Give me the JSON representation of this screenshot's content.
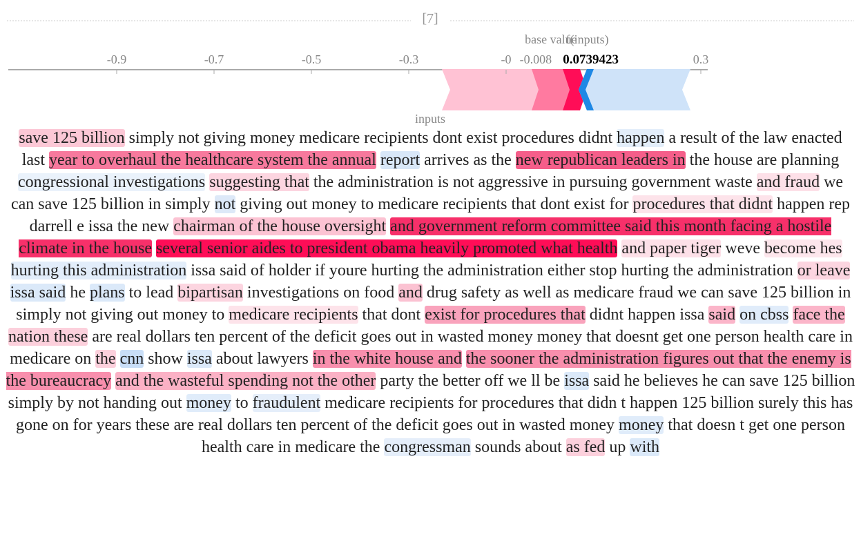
{
  "header": {
    "title": "[7]"
  },
  "force_plot": {
    "ticks": [
      -0.9,
      -0.7,
      -0.5,
      -0.3,
      {
        "value": -0.1,
        "label": "-0"
      },
      0.3
    ],
    "base_value": {
      "value": -0.008,
      "label": "-0.008"
    },
    "base_value_label": "base value",
    "output_label": "f(inputs)",
    "output_value": 0.0739423,
    "inputs_label": "inputs"
  },
  "text": {
    "segments": [
      {
        "text": "save 125 billion",
        "color": "#fcc8d6"
      },
      {
        "text": "simply not giving money medicare recipients dont exist procedures didnt"
      },
      {
        "text": "happen",
        "color": "#e3eefa"
      },
      {
        "text": "a result of the law enacted last"
      },
      {
        "text": "year to overhaul the healthcare system the annual",
        "color": "#f7799d"
      },
      {
        "text": "report",
        "color": "#d8e7f8"
      },
      {
        "text": "arrives as the"
      },
      {
        "text": "new republican leaders in",
        "color": "#f55e8a"
      },
      {
        "text": "the house are planning"
      },
      {
        "text": "congressional investigations",
        "color": "#eaf2fb"
      },
      {
        "text": "suggesting that",
        "color": "#fcd5e0"
      },
      {
        "text": "the administration is not aggressive in pursuing government waste"
      },
      {
        "text": "and fraud",
        "color": "#fde0e8"
      },
      {
        "text": "we can save 125 billion in simply"
      },
      {
        "text": "not",
        "color": "#dde9f8"
      },
      {
        "text": "giving out money to medicare recipients that dont exist for"
      },
      {
        "text": "procedures that didnt",
        "color": "#fde3ea"
      },
      {
        "text": "happen rep darrell e issa the new"
      },
      {
        "text": "chairman of the house oversight",
        "color": "#fcc3d3"
      },
      {
        "text": "and government reform committee said this month facing a hostile climate in the house",
        "color": "#f7306a"
      },
      {
        "text": "several senior aides to president obama heavily promoted what health",
        "color": "#ff0d57"
      },
      {
        "text": "and paper tiger",
        "color": "#fde0e8"
      },
      {
        "text": "weve"
      },
      {
        "text": "become hes",
        "color": "#fde6ec"
      },
      {
        "text": "hurting this administration",
        "color": "#e2edfa"
      },
      {
        "text": "issa said of holder if youre hurting the administration either stop hurting the administration"
      },
      {
        "text": "or leave",
        "color": "#fcd5e0"
      },
      {
        "text": "issa said",
        "color": "#dbe9f9"
      },
      {
        "text": "he"
      },
      {
        "text": "plans",
        "color": "#dbe9f9"
      },
      {
        "text": "to lead"
      },
      {
        "text": "bipartisan",
        "color": "#fcd5e0"
      },
      {
        "text": "investigations on food"
      },
      {
        "text": "and",
        "color": "#fbc2d2"
      },
      {
        "text": "drug safety as well as medicare fraud we can save 125 billion in simply not giving out money to"
      },
      {
        "text": "medicare recipients",
        "color": "#fde3ea"
      },
      {
        "text": "that dont"
      },
      {
        "text": "exist for procedures that",
        "color": "#f9a3bc"
      },
      {
        "text": "didnt happen issa"
      },
      {
        "text": "said",
        "color": "#fbb5c9"
      },
      {
        "text": "on cbss",
        "color": "#e0ecfa"
      },
      {
        "text": "face the",
        "color": "#fbb5c9"
      },
      {
        "text": "nation these",
        "color": "#fcd0dc"
      },
      {
        "text": "are real dollars ten percent of the deficit goes out in wasted money money that doesnt get one person health care in medicare on"
      },
      {
        "text": "the",
        "color": "#fcd0dc"
      },
      {
        "text": "cnn",
        "color": "#c9def7"
      },
      {
        "text": "show"
      },
      {
        "text": "issa",
        "color": "#dbe9f9"
      },
      {
        "text": "about lawyers"
      },
      {
        "text": "in the white house and",
        "color": "#f88fad"
      },
      {
        "text": "the sooner the administration figures out that the enemy is the bureaucracy",
        "color": "#f88fad"
      },
      {
        "text": "and the wasteful spending not the other",
        "color": "#fbb1c5"
      },
      {
        "text": "party the better off we ll be"
      },
      {
        "text": "issa",
        "color": "#dbe9f9"
      },
      {
        "text": "said he believes he can save 125 billion simply by not handing out"
      },
      {
        "text": "money",
        "color": "#e0ecfa"
      },
      {
        "text": "to"
      },
      {
        "text": "fraudulent",
        "color": "#e5eefa"
      },
      {
        "text": "medicare recipients for procedures that didn t happen 125 billion surely this has gone on for years these are real dollars ten percent of the deficit goes out in wasted money"
      },
      {
        "text": "money",
        "color": "#e0ecfa"
      },
      {
        "text": "that doesn t get one person health care in medicare the"
      },
      {
        "text": "congressman",
        "color": "#e5eefa"
      },
      {
        "text": "sounds about"
      },
      {
        "text": "as fed",
        "color": "#fcd0dc"
      },
      {
        "text": "up"
      },
      {
        "text": "with",
        "color": "#dbe9f9"
      }
    ]
  }
}
